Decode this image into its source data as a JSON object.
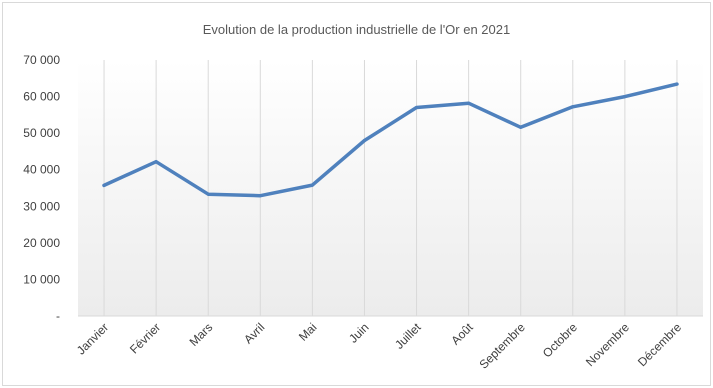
{
  "chart_data": {
    "type": "line",
    "title": "Evolution de la production industrielle de l'Or en 2021",
    "categories": [
      "Janvier",
      "Février",
      "Mars",
      "Avril",
      "Mai",
      "Juin",
      "Juillet",
      "Août",
      "Septembre",
      "Octobre",
      "Novembre",
      "Décembre"
    ],
    "series": [
      {
        "values": [
          35700,
          42200,
          33300,
          32900,
          35800,
          48000,
          57000,
          58200,
          51600,
          57200,
          60000,
          63400
        ]
      }
    ],
    "y_tick_labels": [
      "-",
      "10 000",
      "20 000",
      "30 000",
      "40 000",
      "50 000",
      "60 000",
      "70 000"
    ],
    "ylim": [
      0,
      70000
    ],
    "grid": "vertical",
    "line_color": "#4f81bd",
    "grid_color": "#d9d9d9"
  }
}
